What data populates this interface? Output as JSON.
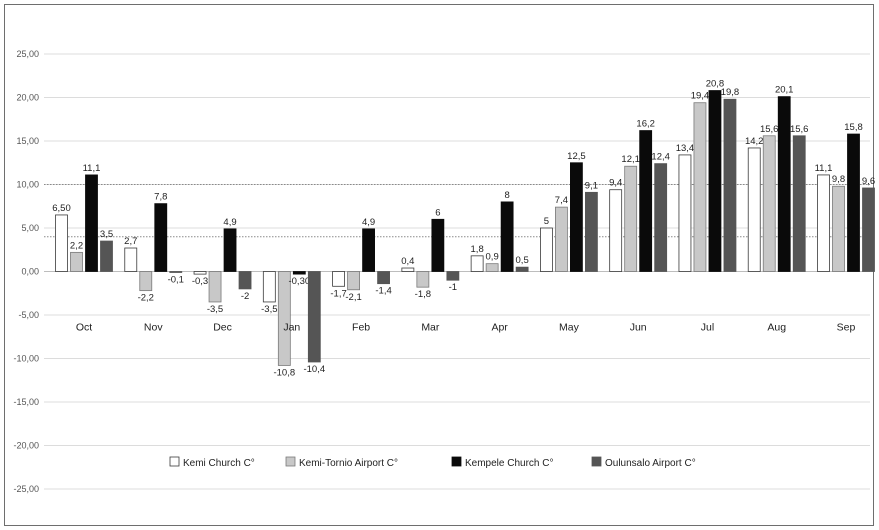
{
  "chart_data": {
    "type": "bar",
    "categories": [
      "Oct",
      "Nov",
      "Dec",
      "Jan",
      "Feb",
      "Mar",
      "Apr",
      "May",
      "Jun",
      "Jul",
      "Aug",
      "Sep"
    ],
    "series": [
      {
        "name": "Kemi Church C°",
        "color": "#ffffff",
        "values": [
          6.5,
          2.7,
          -0.3,
          -3.5,
          -1.7,
          0.4,
          1.8,
          5,
          9.4,
          13.4,
          14.2,
          11.1
        ],
        "labels": [
          "6,50",
          "2,7",
          "-0,3",
          "-3,5",
          "-1,7",
          "0,4",
          "1,8",
          "5",
          "9,4",
          "13,4",
          "14,2",
          "11,1"
        ]
      },
      {
        "name": "Kemi-Tornio Airport C°",
        "color": "#c8c8c8",
        "values": [
          2.2,
          -2.2,
          -3.5,
          -10.8,
          -2.1,
          -1.8,
          0.9,
          7.4,
          12.1,
          19.4,
          15.6,
          9.8
        ],
        "labels": [
          "2,2",
          "-2,2",
          "-3,5",
          "-10,8",
          "-2,1",
          "-1,8",
          "0,9",
          "7,4",
          "12,1",
          "19,4",
          "15,6",
          "9,8"
        ]
      },
      {
        "name": "Kempele Church C°",
        "color": "#0a0a0a",
        "values": [
          11.1,
          7.8,
          4.9,
          -0.3,
          4.9,
          6,
          8,
          12.5,
          16.2,
          20.8,
          20.1,
          15.8
        ],
        "labels": [
          "11,1",
          "7,8",
          "4,9",
          "-0,30",
          "4,9",
          "6",
          "8",
          "12,5",
          "16,2",
          "20,8",
          "20,1",
          "15,8"
        ]
      },
      {
        "name": "Oulunsalo Airport C°",
        "color": "#555555",
        "values": [
          3.5,
          -0.1,
          -2,
          -10.4,
          -1.4,
          -1,
          0.5,
          9.1,
          12.4,
          19.8,
          15.6,
          9.6
        ],
        "labels": [
          "3,5",
          "-0,1",
          "-2",
          "-10,4",
          "-1,4",
          "-1",
          "0,5",
          "9,1",
          "12,4",
          "19,8",
          "15,6",
          "9,6"
        ]
      }
    ],
    "yticks": [
      "25,00",
      "20,00",
      "15,00",
      "10,00",
      "5,00",
      "0,00",
      "-5,00",
      "-10,00",
      "-15,00",
      "-20,00",
      "-25,00"
    ],
    "ylim": [
      -25,
      25
    ],
    "grid": true,
    "reference_lines": [
      10,
      4
    ],
    "legend_position": "bottom"
  }
}
